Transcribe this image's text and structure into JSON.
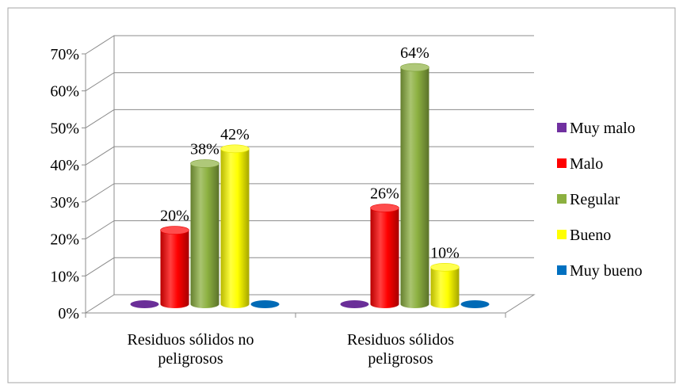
{
  "chart_data": {
    "type": "bar",
    "title": "",
    "xlabel": "",
    "ylabel": "",
    "ylim": [
      0,
      0.7
    ],
    "y_ticks": [
      "0%",
      "10%",
      "20%",
      "30%",
      "40%",
      "50%",
      "60%",
      "70%"
    ],
    "grid": true,
    "legend_position": "right",
    "categories": [
      [
        "Residuos sólidos no",
        "peligrosos"
      ],
      [
        "Residuos sólidos",
        "peligrosos"
      ]
    ],
    "series": [
      {
        "name": "Muy malo",
        "color": "#7030a0",
        "values": [
          0,
          0
        ],
        "labels": [
          "",
          ""
        ]
      },
      {
        "name": "Malo",
        "color": "#ff0000",
        "values": [
          0.2,
          0.26
        ],
        "labels": [
          "20%",
          "26%"
        ]
      },
      {
        "name": "Regular",
        "color": "#8cb040",
        "values": [
          0.38,
          0.64
        ],
        "labels": [
          "38%",
          "64%"
        ]
      },
      {
        "name": "Bueno",
        "color": "#ffff00",
        "values": [
          0.42,
          0.1
        ],
        "labels": [
          "42%",
          "10%"
        ]
      },
      {
        "name": "Muy bueno",
        "color": "#0070c0",
        "values": [
          0,
          0
        ],
        "labels": [
          "",
          ""
        ]
      }
    ]
  }
}
